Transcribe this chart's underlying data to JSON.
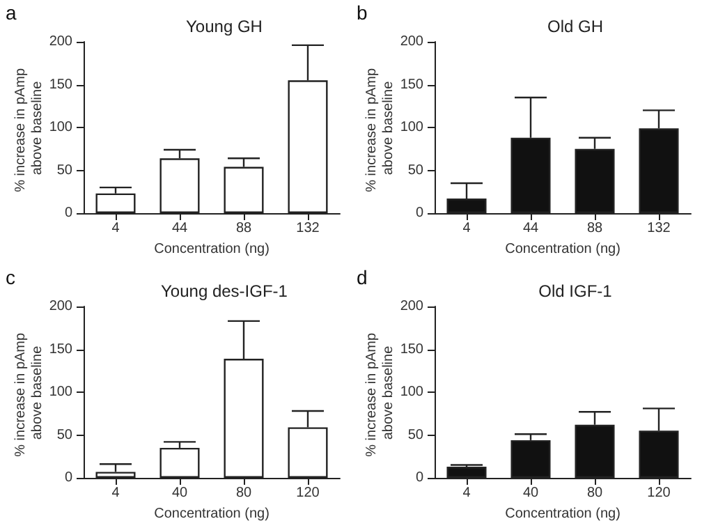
{
  "chart_data": [
    {
      "type": "bar",
      "title": "Young GH",
      "annotations": [
        "a"
      ],
      "xlabel": "Concentration (ng)",
      "ylabel": "% increase in pAmp above baseline",
      "categories": [
        "4",
        "44",
        "88",
        "132"
      ],
      "values": [
        23,
        64,
        54,
        155
      ],
      "errors": [
        [
          23,
          30
        ],
        [
          64,
          74
        ],
        [
          54,
          64
        ],
        [
          155,
          196
        ]
      ],
      "color": "#ffffff",
      "ylim": [
        0,
        200
      ],
      "yticks": [
        0,
        50,
        100,
        150,
        200
      ],
      "grid": false
    },
    {
      "type": "bar",
      "title": "Old GH",
      "annotations": [
        "b"
      ],
      "xlabel": "Concentration (ng)",
      "ylabel": "% increase in pAmp above baseline",
      "categories": [
        "4",
        "44",
        "88",
        "132"
      ],
      "values": [
        17,
        88,
        75,
        99
      ],
      "errors": [
        [
          17,
          35
        ],
        [
          88,
          135
        ],
        [
          75,
          88
        ],
        [
          99,
          120
        ]
      ],
      "color": "#111111",
      "ylim": [
        0,
        200
      ],
      "yticks": [
        0,
        50,
        100,
        150,
        200
      ],
      "grid": false
    },
    {
      "type": "bar",
      "title": "Young des-IGF-1",
      "annotations": [
        "c"
      ],
      "xlabel": "Concentration (ng)",
      "ylabel": "% increase in pAmp above baseline",
      "categories": [
        "4",
        "40",
        "80",
        "120"
      ],
      "values": [
        7,
        35,
        139,
        59
      ],
      "errors": [
        [
          7,
          16
        ],
        [
          35,
          42
        ],
        [
          139,
          183
        ],
        [
          59,
          78
        ]
      ],
      "color": "#ffffff",
      "ylim": [
        0,
        200
      ],
      "yticks": [
        0,
        50,
        100,
        150,
        200
      ],
      "grid": false
    },
    {
      "type": "bar",
      "title": "Old IGF-1",
      "annotations": [
        "d"
      ],
      "xlabel": "Concentration (ng)",
      "ylabel": "% increase in pAmp above baseline",
      "categories": [
        "4",
        "40",
        "80",
        "120"
      ],
      "values": [
        13,
        44,
        62,
        55
      ],
      "errors": [
        [
          13,
          15
        ],
        [
          44,
          51
        ],
        [
          62,
          77
        ],
        [
          55,
          81
        ]
      ],
      "color": "#111111",
      "ylim": [
        0,
        200
      ],
      "yticks": [
        0,
        50,
        100,
        150,
        200
      ],
      "grid": false
    }
  ]
}
